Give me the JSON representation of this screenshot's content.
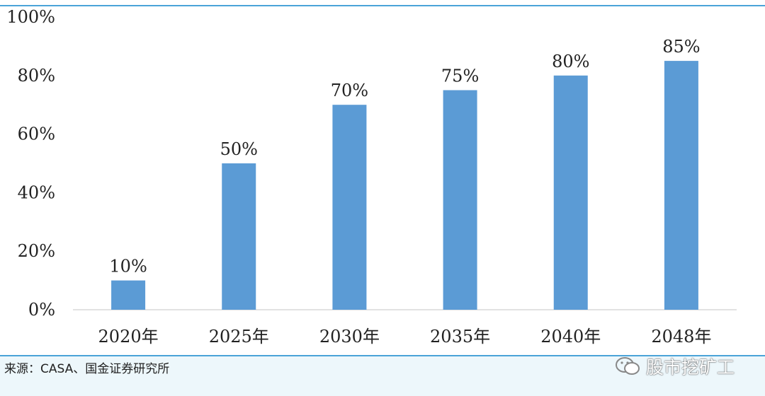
{
  "chart_data": {
    "type": "bar",
    "categories": [
      "2020年",
      "2025年",
      "2030年",
      "2035年",
      "2040年",
      "2048年"
    ],
    "values": [
      10,
      50,
      70,
      75,
      80,
      85
    ],
    "data_labels": [
      "10%",
      "50%",
      "70%",
      "75%",
      "80%",
      "85%"
    ],
    "y_ticks": [
      "0%",
      "20%",
      "40%",
      "60%",
      "80%",
      "100%"
    ],
    "ylim": [
      0,
      100
    ],
    "y_unit": "%",
    "bar_color": "#5b9bd5",
    "grid": false,
    "legend": "none"
  },
  "source": "来源：CASA、国金证券研究所",
  "watermark": "股市挖矿工",
  "colors": {
    "accent_rule": "#4aa3d8",
    "footer_bg": "#edf7fb",
    "axis": "#d9d9d9"
  }
}
